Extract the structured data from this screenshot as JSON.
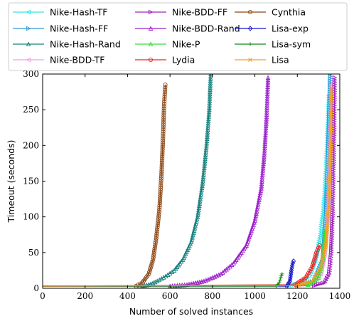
{
  "chart_data": {
    "type": "line",
    "title": "",
    "xlabel": "Number of solved instances",
    "ylabel": "Timeout (seconds)",
    "xlim": [
      0,
      1400
    ],
    "ylim": [
      0,
      300
    ],
    "x_ticks": [
      "0",
      "200",
      "400",
      "600",
      "800",
      "1000",
      "1200",
      "1400"
    ],
    "y_ticks": [
      "0",
      "50",
      "100",
      "150",
      "200",
      "250",
      "300"
    ],
    "legend_position": "top (above plot, 3 columns)",
    "series": [
      {
        "name": "Nike-Hash-TF",
        "color": "#33e6e6",
        "marker": "tri-left",
        "points": [
          [
            0,
            3
          ],
          [
            1150,
            4
          ],
          [
            1220,
            8
          ],
          [
            1260,
            20
          ],
          [
            1290,
            45
          ],
          [
            1310,
            80
          ],
          [
            1325,
            120
          ],
          [
            1335,
            170
          ],
          [
            1342,
            220
          ],
          [
            1348,
            270
          ]
        ]
      },
      {
        "name": "Nike-Hash-FF",
        "color": "#2a9dd8",
        "marker": "tri-right",
        "points": [
          [
            0,
            3
          ],
          [
            1200,
            4
          ],
          [
            1280,
            10
          ],
          [
            1320,
            40
          ],
          [
            1335,
            100
          ],
          [
            1345,
            180
          ],
          [
            1352,
            260
          ],
          [
            1355,
            300
          ]
        ]
      },
      {
        "name": "Nike-Hash-Rand",
        "color": "#14807e",
        "marker": "tri-up",
        "points": [
          [
            0,
            3
          ],
          [
            460,
            3
          ],
          [
            500,
            5
          ],
          [
            540,
            10
          ],
          [
            580,
            17
          ],
          [
            620,
            25
          ],
          [
            660,
            40
          ],
          [
            700,
            65
          ],
          [
            730,
            100
          ],
          [
            755,
            150
          ],
          [
            772,
            200
          ],
          [
            785,
            250
          ],
          [
            792,
            300
          ]
        ]
      },
      {
        "name": "Nike-BDD-TF",
        "color": "#f0a0e0",
        "marker": "tri-left",
        "points": [
          [
            0,
            3
          ],
          [
            1200,
            4
          ],
          [
            1270,
            8
          ],
          [
            1310,
            20
          ],
          [
            1330,
            50
          ],
          [
            1340,
            100
          ],
          [
            1348,
            160
          ],
          [
            1355,
            230
          ],
          [
            1360,
            285
          ]
        ]
      },
      {
        "name": "Nike-BDD-FF",
        "color": "#a020c0",
        "marker": "tri-right",
        "points": [
          [
            0,
            3
          ],
          [
            1280,
            4
          ],
          [
            1330,
            8
          ],
          [
            1350,
            20
          ],
          [
            1360,
            50
          ],
          [
            1366,
            100
          ],
          [
            1370,
            160
          ],
          [
            1374,
            230
          ],
          [
            1376,
            295
          ]
        ]
      },
      {
        "name": "Nike-BDD-Rand",
        "color": "#9a1fcc",
        "marker": "tri-up",
        "points": [
          [
            0,
            3
          ],
          [
            600,
            3
          ],
          [
            680,
            5
          ],
          [
            760,
            10
          ],
          [
            840,
            20
          ],
          [
            900,
            35
          ],
          [
            960,
            60
          ],
          [
            1000,
            95
          ],
          [
            1030,
            140
          ],
          [
            1045,
            190
          ],
          [
            1055,
            240
          ],
          [
            1062,
            295
          ]
        ]
      },
      {
        "name": "Nike-P",
        "color": "#33dd33",
        "marker": "tri-up",
        "points": [
          [
            0,
            3
          ],
          [
            1250,
            5
          ],
          [
            1300,
            15
          ],
          [
            1320,
            40
          ],
          [
            1330,
            80
          ]
        ]
      },
      {
        "name": "Lydia",
        "color": "#ee2222",
        "marker": "circle",
        "points": [
          [
            0,
            3
          ],
          [
            1190,
            5
          ],
          [
            1240,
            15
          ],
          [
            1270,
            30
          ],
          [
            1290,
            50
          ],
          [
            1305,
            60
          ]
        ]
      },
      {
        "name": "Cynthia",
        "color": "#8b4513",
        "marker": "circle",
        "points": [
          [
            0,
            3
          ],
          [
            440,
            3
          ],
          [
            470,
            8
          ],
          [
            500,
            20
          ],
          [
            520,
            40
          ],
          [
            535,
            70
          ],
          [
            550,
            110
          ],
          [
            560,
            160
          ],
          [
            567,
            210
          ],
          [
            572,
            255
          ],
          [
            578,
            285
          ]
        ]
      },
      {
        "name": "Lisa-exp",
        "color": "#1515cc",
        "marker": "diamond",
        "points": [
          [
            0,
            3
          ],
          [
            1150,
            3
          ],
          [
            1165,
            10
          ],
          [
            1172,
            25
          ],
          [
            1178,
            35
          ],
          [
            1182,
            38
          ]
        ]
      },
      {
        "name": "Lisa-sym",
        "color": "#118811",
        "marker": "plus",
        "points": [
          [
            0,
            3
          ],
          [
            1100,
            3
          ],
          [
            1115,
            8
          ],
          [
            1122,
            15
          ],
          [
            1128,
            20
          ]
        ]
      },
      {
        "name": "Lisa",
        "color": "#f0a020",
        "marker": "x",
        "points": [
          [
            0,
            3
          ],
          [
            1200,
            4
          ],
          [
            1270,
            10
          ],
          [
            1310,
            30
          ],
          [
            1335,
            60
          ],
          [
            1350,
            120
          ],
          [
            1358,
            200
          ],
          [
            1362,
            280
          ]
        ]
      }
    ]
  }
}
